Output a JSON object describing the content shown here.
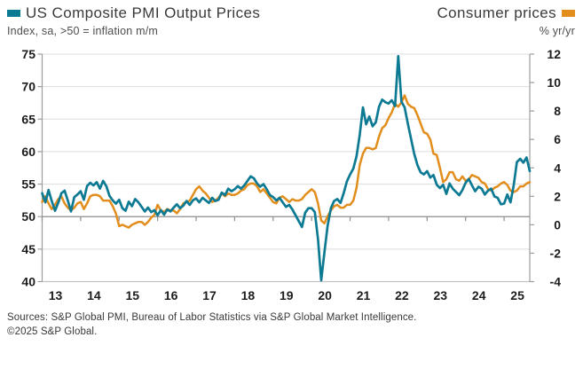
{
  "header": {
    "left_series_label": "US Composite PMI Output Prices",
    "left_subtitle": "Index, sa, >50 = inflation m/m",
    "right_series_label": "Consumer prices",
    "right_subtitle": "% yr/yr"
  },
  "footer": {
    "sources_line": "Sources: S&P Global PMI, Bureau of Labor Statistics via S&P Global Market Intelligence.",
    "copyright_line": "©2025 S&P Global."
  },
  "colors": {
    "pmi_teal": "#0d7a93",
    "cpi_orange": "#e28e1d",
    "gridline": "#dcdcdc",
    "axis": "#9c9c9c",
    "baseline": "#8f8f8f",
    "tick_label": "#1c1c1c"
  },
  "chart_data": {
    "type": "line",
    "x_unit": "monthly",
    "x_start": "2013-01",
    "x_end": "2025-09",
    "x_tick_labels": [
      "13",
      "14",
      "15",
      "16",
      "17",
      "18",
      "19",
      "20",
      "21",
      "22",
      "23",
      "24",
      "25"
    ],
    "grid": "horizontal",
    "legend_position": "top",
    "left_axis": {
      "label": "Index, sa, >50 = inflation m/m",
      "min": 40,
      "max": 75,
      "ticks": [
        75,
        70,
        65,
        60,
        55,
        50,
        45,
        40
      ],
      "baseline_value": 50
    },
    "right_axis": {
      "label": "% yr/yr",
      "min": -4,
      "max": 12,
      "ticks": [
        12,
        10,
        8,
        6,
        4,
        2,
        0,
        -2,
        -4
      ]
    },
    "series": [
      {
        "name": "US Composite PMI Output Prices",
        "axis": "left",
        "color": "#0d7a93",
        "values": [
          53.6,
          52.2,
          54.1,
          52.4,
          50.9,
          52.1,
          53.6,
          54.0,
          52.5,
          50.8,
          53.0,
          53.4,
          53.9,
          52.6,
          54.7,
          55.2,
          54.8,
          55.3,
          54.3,
          55.5,
          54.7,
          53.2,
          52.5,
          52.0,
          52.6,
          51.3,
          50.9,
          52.3,
          51.6,
          52.7,
          52.2,
          51.5,
          50.8,
          51.4,
          50.7,
          51.0,
          50.2,
          51.0,
          50.3,
          51.1,
          50.8,
          51.4,
          51.9,
          51.3,
          51.7,
          52.4,
          51.8,
          52.5,
          52.8,
          52.2,
          52.9,
          52.5,
          52.1,
          52.9,
          52.4,
          52.6,
          53.7,
          53.3,
          54.3,
          53.9,
          54.2,
          54.7,
          54.3,
          54.8,
          55.5,
          56.2,
          55.9,
          55.1,
          54.6,
          55.0,
          54.2,
          53.3,
          53.0,
          52.5,
          52.9,
          52.2,
          51.5,
          51.8,
          51.1,
          50.2,
          49.3,
          48.4,
          50.6,
          51.3,
          51.3,
          50.7,
          46.5,
          40.2,
          44.5,
          48.6,
          51.3,
          52.4,
          52.7,
          52.1,
          53.6,
          55.4,
          56.5,
          57.4,
          59.3,
          62.6,
          66.8,
          64.2,
          65.4,
          63.9,
          64.5,
          66.9,
          68.0,
          67.6,
          67.4,
          67.9,
          67.0,
          74.7,
          67.7,
          66.8,
          64.3,
          62.0,
          59.6,
          57.9,
          56.8,
          56.5,
          57.0,
          56.0,
          56.4,
          54.9,
          54.4,
          54.9,
          53.5,
          55.1,
          54.3,
          53.8,
          53.3,
          54.1,
          55.2,
          55.8,
          54.8,
          53.9,
          54.6,
          54.3,
          53.4,
          54.0,
          54.3,
          53.1,
          52.9,
          51.9,
          52.0,
          53.4,
          52.2,
          54.8,
          58.4,
          58.9,
          58.3,
          59.1,
          57.0
        ]
      },
      {
        "name": "Consumer prices",
        "axis": "right",
        "color": "#e28e1d",
        "values": [
          1.6,
          2.0,
          1.5,
          1.1,
          1.4,
          1.8,
          2.0,
          1.5,
          1.2,
          1.0,
          1.2,
          1.5,
          1.6,
          1.1,
          1.5,
          2.0,
          2.1,
          2.1,
          2.0,
          1.7,
          1.7,
          1.7,
          1.3,
          0.8,
          -0.1,
          0.0,
          -0.1,
          -0.2,
          0.0,
          0.1,
          0.2,
          0.2,
          0.0,
          0.2,
          0.5,
          0.7,
          1.4,
          1.0,
          0.9,
          1.1,
          1.0,
          1.0,
          0.8,
          1.1,
          1.5,
          1.6,
          1.7,
          2.1,
          2.5,
          2.7,
          2.4,
          2.2,
          1.9,
          1.6,
          1.7,
          1.9,
          2.2,
          2.0,
          2.2,
          2.1,
          2.1,
          2.2,
          2.4,
          2.5,
          2.8,
          2.9,
          2.9,
          2.7,
          2.3,
          2.5,
          2.2,
          1.9,
          1.6,
          1.5,
          1.9,
          2.0,
          1.8,
          1.6,
          1.8,
          1.7,
          1.7,
          1.8,
          2.1,
          2.3,
          2.5,
          2.3,
          1.5,
          0.3,
          0.1,
          0.6,
          1.0,
          1.3,
          1.4,
          1.2,
          1.2,
          1.4,
          1.4,
          1.7,
          2.6,
          4.2,
          5.0,
          5.4,
          5.4,
          5.3,
          5.4,
          6.2,
          6.8,
          7.0,
          7.5,
          7.9,
          8.5,
          8.3,
          8.6,
          9.1,
          8.5,
          8.3,
          8.2,
          7.7,
          7.1,
          6.5,
          6.4,
          6.0,
          5.0,
          4.9,
          4.0,
          3.0,
          3.2,
          3.7,
          3.7,
          3.2,
          3.1,
          3.4,
          3.1,
          3.2,
          3.5,
          3.4,
          3.3,
          3.0,
          2.9,
          2.5,
          2.4,
          2.6,
          2.7,
          2.9,
          3.0,
          2.8,
          2.4,
          2.3,
          2.4,
          2.7,
          2.7,
          2.9,
          3.0
        ]
      }
    ]
  }
}
